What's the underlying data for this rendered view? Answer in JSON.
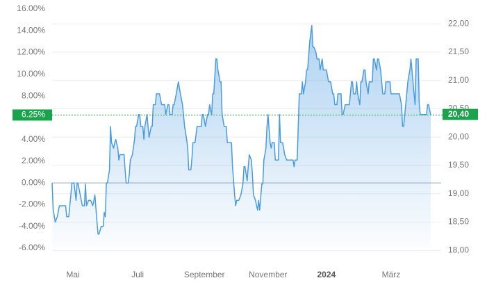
{
  "chart_data": {
    "type": "line",
    "x": [
      0,
      1,
      3,
      5,
      7,
      10,
      13,
      14,
      16,
      18,
      19,
      21,
      23,
      24,
      25,
      27,
      29,
      31,
      32,
      33,
      35,
      37,
      39,
      41,
      43,
      44,
      45,
      47,
      49,
      50,
      51,
      52,
      53,
      55,
      56,
      57,
      59,
      60,
      61,
      63,
      64,
      65,
      67,
      69,
      70,
      71,
      73,
      74,
      75,
      77,
      79,
      80,
      81,
      83,
      84,
      85,
      87,
      88,
      89,
      91,
      92,
      93,
      95,
      96,
      97,
      99,
      100,
      101,
      103,
      105,
      106,
      108,
      109,
      111,
      112,
      113,
      115,
      116,
      117,
      119,
      121,
      123,
      125,
      127,
      129,
      130,
      131,
      133,
      134,
      135,
      137,
      139,
      141,
      143,
      144,
      145,
      147,
      149,
      150,
      151,
      153,
      154,
      155,
      157,
      158,
      159,
      161,
      162,
      163,
      165,
      167,
      168,
      170,
      172,
      173,
      175,
      176,
      177,
      179,
      181,
      183,
      184,
      185,
      187,
      188,
      189,
      191,
      192,
      193,
      195,
      196,
      197,
      198,
      199,
      201,
      202,
      203,
      205,
      206,
      207,
      209,
      210,
      211,
      213,
      214,
      215,
      217,
      218,
      219,
      221,
      222,
      223,
      225,
      227,
      229,
      231,
      232,
      233,
      235,
      236,
      237,
      239,
      240,
      241,
      243,
      244,
      245,
      247,
      249,
      250,
      251,
      253,
      254,
      256,
      257,
      259,
      260,
      262,
      263,
      265,
      266,
      267,
      269,
      270,
      271,
      273,
      274,
      275,
      277,
      278,
      279,
      281,
      282,
      283,
      285,
      287,
      288,
      289,
      291,
      292,
      293,
      295,
      296,
      297,
      299,
      300,
      301,
      303,
      304,
      305,
      307,
      308,
      309,
      311,
      312,
      313,
      315,
      316,
      317,
      319,
      320,
      321,
      323,
      324,
      325,
      327,
      328,
      329,
      331,
      332,
      333,
      335,
      336,
      337,
      339,
      340,
      341,
      343,
      344,
      345,
      347,
      348,
      349,
      351,
      352,
      353,
      355,
      357,
      359,
      360,
      361,
      363
    ],
    "values": [
      0,
      -2.4,
      -3.6,
      -3.1,
      -2.1,
      -2.1,
      -2.1,
      -3.1,
      -3.1,
      -1.1,
      0,
      0,
      -1.6,
      0,
      -0.1,
      -1.1,
      -2.1,
      -2.1,
      -0.1,
      -2.1,
      -1.6,
      -1.6,
      -2.1,
      -1.1,
      -3.6,
      -4.7,
      -4.7,
      -4.0,
      -4.0,
      -2.7,
      -3.1,
      0,
      0,
      1.2,
      5.2,
      3.7,
      3.2,
      3.7,
      4.0,
      3.2,
      2.1,
      2.6,
      2.6,
      2.6,
      1.2,
      0,
      0,
      0.8,
      2.1,
      2.6,
      4.0,
      5.2,
      5.2,
      6.3,
      6.3,
      5.2,
      5.2,
      4.0,
      5.2,
      6.3,
      5.2,
      4.2,
      5.2,
      5.2,
      7.2,
      7.2,
      8.2,
      8.2,
      8.2,
      7.2,
      7.2,
      7.2,
      6.3,
      7.2,
      7.2,
      6.3,
      6.3,
      7.2,
      7.2,
      8.2,
      9.3,
      8.2,
      7.2,
      5.2,
      4.0,
      3.2,
      1.2,
      1.2,
      2.2,
      3.7,
      3.7,
      5.2,
      5.2,
      5.2,
      6.3,
      6.3,
      5.2,
      6.3,
      6.3,
      7.2,
      6.3,
      8.2,
      8.2,
      11.4,
      11.4,
      10.4,
      9.3,
      9.3,
      6.3,
      5.2,
      5.2,
      3.7,
      3.7,
      3.7,
      1.5,
      -1.1,
      -2.1,
      -1.6,
      -1.6,
      -1.1,
      -0.1,
      1.5,
      1.5,
      0.2,
      1.5,
      2.6,
      2.1,
      0.8,
      -1.1,
      -1.6,
      -2.1,
      -2.5,
      -1.6,
      -2.5,
      -0.1,
      -0.1,
      2.1,
      3.2,
      5.2,
      6.3,
      3.7,
      3.2,
      3.7,
      3.7,
      2.1,
      2.1,
      2.1,
      6.3,
      3.7,
      3.7,
      3.2,
      2.6,
      2.1,
      2.1,
      2.1,
      2.1,
      1.5,
      2.1,
      2.1,
      5.2,
      8.2,
      8.2,
      9.3,
      8.2,
      9.3,
      10.4,
      10.4,
      13.0,
      14.5,
      12.5,
      12.5,
      12.0,
      11.4,
      11.4,
      10.4,
      11.4,
      10.4,
      10.4,
      10.4,
      9.3,
      9.3,
      9.3,
      8.2,
      8.2,
      7.2,
      7.2,
      8.2,
      8.2,
      8.2,
      6.3,
      6.3,
      7.2,
      7.2,
      7.2,
      7.2,
      9.3,
      9.3,
      8.2,
      8.2,
      9.3,
      8.2,
      7.2,
      9.3,
      9.3,
      10.4,
      10.4,
      9.3,
      8.2,
      9.3,
      9.3,
      9.3,
      11.4,
      11.4,
      10.4,
      11.4,
      11.4,
      10.4,
      9.3,
      8.2,
      8.2,
      9.3,
      9.3,
      9.3,
      9.3,
      8.2,
      8.2,
      8.2,
      8.2,
      8.2,
      8.2,
      8.2,
      7.2,
      5.2,
      5.2,
      7.2,
      8.2,
      9.3,
      10.4,
      11.4,
      10.4,
      8.2,
      7.2,
      11.4,
      11.4,
      7.2,
      6.3,
      6.3,
      6.3,
      6.3,
      7.2,
      7.2,
      6.25
    ],
    "color": "#4a9be0",
    "xlim": [
      0,
      373
    ],
    "xticks": [
      {
        "value": 20,
        "label": "Mai"
      },
      {
        "value": 82,
        "label": "Juli"
      },
      {
        "value": 146,
        "label": "September"
      },
      {
        "value": 207,
        "label": "November"
      },
      {
        "value": 263,
        "label": "2024"
      },
      {
        "value": 325,
        "label": "März"
      }
    ],
    "ylim": [
      -6,
      16
    ],
    "yticks": [
      {
        "value": 16,
        "label": "16.00%"
      },
      {
        "value": 14,
        "label": "14.00%"
      },
      {
        "value": 12,
        "label": "12.00%"
      },
      {
        "value": 10,
        "label": "10.00%"
      },
      {
        "value": 8,
        "label": "8.00%"
      },
      {
        "value": 4,
        "label": "4.00%"
      },
      {
        "value": 2,
        "label": "2.00%"
      },
      {
        "value": 0,
        "label": "0.00%"
      },
      {
        "value": -2,
        "label": "-2.00%"
      },
      {
        "value": -4,
        "label": "-4.00%"
      },
      {
        "value": -6,
        "label": "-6.00%"
      }
    ],
    "y2lim": [
      18.04,
      22.26
    ],
    "y2ticks": [
      {
        "value": 22,
        "label": "22,00"
      },
      {
        "value": 21.5,
        "label": "21,50"
      },
      {
        "value": 21,
        "label": "21,00"
      },
      {
        "value": 20.5,
        "label": "20,50"
      },
      {
        "value": 20,
        "label": "20,00"
      },
      {
        "value": 19.5,
        "label": "19,50"
      },
      {
        "value": 19,
        "label": "19,00"
      },
      {
        "value": 18.5,
        "label": "18,50"
      },
      {
        "value": 18,
        "label": "18,00"
      }
    ],
    "current": {
      "value": 6.25,
      "label": "6.25%"
    },
    "current_price": {
      "value": 20.4,
      "label": "20,40"
    },
    "marker_color": "#1aa34a",
    "grid": true
  }
}
